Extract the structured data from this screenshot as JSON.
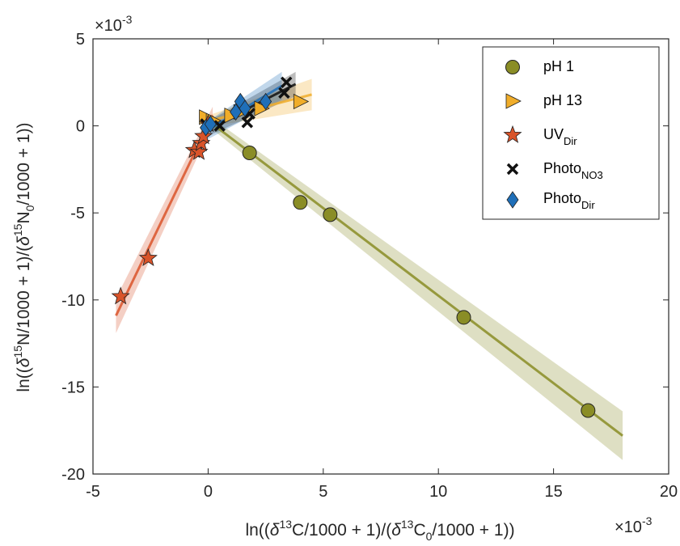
{
  "chart_data": {
    "type": "scatter",
    "xlabel": {
      "pre": "ln((",
      "d1": "δ",
      "s1": "13",
      "m1": "C/1000 + 1)/(",
      "d2": "δ",
      "s2": "13",
      "m2": "C",
      "sub": "0",
      "post": "/1000 + 1))"
    },
    "ylabel": {
      "pre": "ln((",
      "d1": "δ",
      "s1": "15",
      "m1": "N/1000 + 1)/(",
      "d2": "δ",
      "s2": "15",
      "m2": "N",
      "sub": "0",
      "post": "/1000 + 1))"
    },
    "x_exponent": "×10",
    "x_exponent_power": "-3",
    "y_exponent": "×10",
    "y_exponent_power": "-3",
    "xlim": [
      -5,
      20
    ],
    "ylim": [
      -20,
      5
    ],
    "x_ticks": [
      -5,
      0,
      5,
      10,
      15,
      20
    ],
    "y_ticks": [
      -20,
      -15,
      -10,
      -5,
      0,
      5
    ],
    "legend_position": "top-right",
    "colors": {
      "pH1": "#8a8d26",
      "pH13": "#f0ad2a",
      "UV": "#d9542a",
      "NO3": "#111111",
      "Dir": "#1f6fb8"
    },
    "series": [
      {
        "key": "pH1",
        "name": "pH 1",
        "marker": "circle",
        "points": [
          [
            1.8,
            -1.55
          ],
          [
            4.0,
            -4.4
          ],
          [
            5.3,
            -5.1
          ],
          [
            11.1,
            -11.0
          ],
          [
            16.5,
            -16.35
          ]
        ],
        "fit": {
          "x": [
            0,
            18
          ],
          "y": [
            0.3,
            -17.8
          ]
        },
        "band": {
          "x": [
            0,
            18
          ],
          "upper": [
            0.6,
            -16.4
          ],
          "lower": [
            0.0,
            -19.2
          ]
        }
      },
      {
        "key": "pH13",
        "name": "pH 13",
        "marker": "triangle-right",
        "points": [
          [
            -0.1,
            0.5
          ],
          [
            0.2,
            0.3
          ],
          [
            1.0,
            0.6
          ],
          [
            1.4,
            0.8
          ],
          [
            2.3,
            1.0
          ],
          [
            4.0,
            1.4
          ]
        ],
        "fit": {
          "x": [
            -0.2,
            4.5
          ],
          "y": [
            0.2,
            1.8
          ]
        },
        "band": {
          "x": [
            -0.2,
            4.5
          ],
          "upper": [
            0.5,
            2.7
          ],
          "lower": [
            -0.1,
            0.9
          ]
        }
      },
      {
        "key": "UV",
        "name": "UV",
        "name_sub": "Dir",
        "marker": "star",
        "points": [
          [
            -3.8,
            -9.8
          ],
          [
            -2.6,
            -7.6
          ],
          [
            -0.6,
            -1.4
          ],
          [
            -0.4,
            -1.5
          ],
          [
            -0.3,
            -1.0
          ],
          [
            -0.2,
            -0.6
          ],
          [
            0.0,
            0.1
          ]
        ],
        "fit": {
          "x": [
            -4.0,
            0.2
          ],
          "y": [
            -10.9,
            0.6
          ]
        },
        "band": {
          "x": [
            -4.0,
            0.2
          ],
          "upper": [
            -9.9,
            1.1
          ],
          "lower": [
            -11.9,
            0.1
          ]
        }
      },
      {
        "key": "NO3",
        "name": "Photo",
        "name_sub": "NO3",
        "marker": "x",
        "points": [
          [
            0.5,
            0.0
          ],
          [
            1.7,
            0.2
          ],
          [
            1.8,
            0.7
          ],
          [
            3.3,
            1.9
          ],
          [
            3.4,
            2.5
          ],
          [
            -0.1,
            0.1
          ]
        ],
        "fit": {
          "x": [
            -0.2,
            3.8
          ],
          "y": [
            -0.3,
            2.4
          ]
        },
        "band": {
          "x": [
            -0.2,
            3.8
          ],
          "upper": [
            0.1,
            3.1
          ],
          "lower": [
            -0.7,
            1.7
          ]
        }
      },
      {
        "key": "Dir",
        "name": "Photo",
        "name_sub": "Dir",
        "marker": "diamond",
        "points": [
          [
            -0.1,
            -0.1
          ],
          [
            0.1,
            0.1
          ],
          [
            1.2,
            0.8
          ],
          [
            1.4,
            1.4
          ],
          [
            1.6,
            1.0
          ],
          [
            2.5,
            1.4
          ]
        ],
        "fit": {
          "x": [
            -0.2,
            3.2
          ],
          "y": [
            -0.4,
            2.3
          ]
        },
        "band": {
          "x": [
            -0.2,
            3.2
          ],
          "upper": [
            0.1,
            3.1
          ],
          "lower": [
            -0.9,
            1.5
          ]
        }
      }
    ]
  }
}
